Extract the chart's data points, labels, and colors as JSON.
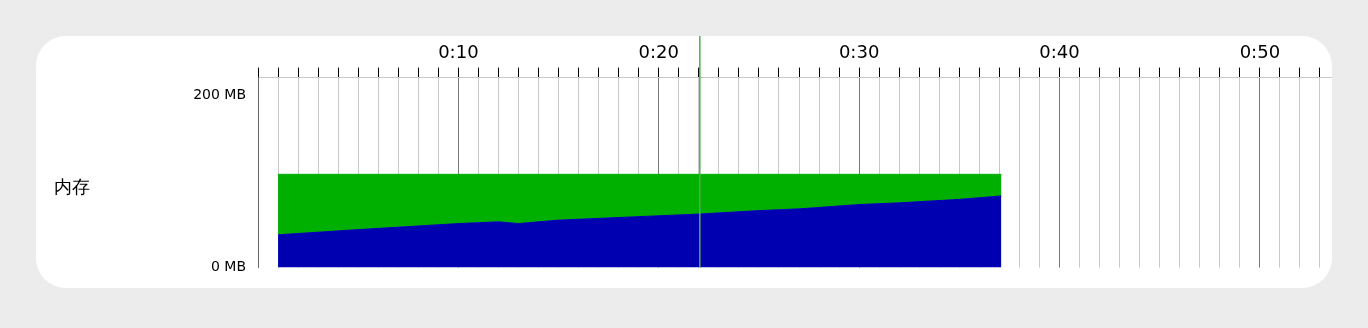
{
  "chart_data": {
    "type": "area",
    "annotations": [
      "内存"
    ],
    "stacked": true,
    "legend": false,
    "grid": "x",
    "marker": "none",
    "x": [
      1,
      5,
      10,
      12,
      13,
      15,
      20,
      22,
      25,
      27,
      30,
      32,
      35,
      37.1
    ],
    "series": [
      {
        "color": "#0000b0",
        "values": [
          38,
          44,
          51,
          53,
          51,
          55,
          60,
          62,
          66,
          68,
          73,
          75,
          79,
          83
        ]
      },
      {
        "color": "#00b000",
        "values": [
          70,
          64,
          57,
          55,
          57,
          53,
          48,
          46,
          42,
          40,
          35,
          33,
          29,
          25
        ]
      }
    ],
    "xlim": [
      0,
      53.6
    ],
    "xticks": [
      {
        "value": 0,
        "label": null
      },
      {
        "value": 1,
        "label": null
      },
      {
        "value": 2,
        "label": null
      },
      {
        "value": 3,
        "label": null
      },
      {
        "value": 4,
        "label": null
      },
      {
        "value": 5,
        "label": null
      },
      {
        "value": 6,
        "label": null
      },
      {
        "value": 7,
        "label": null
      },
      {
        "value": 8,
        "label": null
      },
      {
        "value": 9,
        "label": null
      },
      {
        "value": 10,
        "label": "0:10"
      },
      {
        "value": 11,
        "label": null
      },
      {
        "value": 12,
        "label": null
      },
      {
        "value": 13,
        "label": null
      },
      {
        "value": 14,
        "label": null
      },
      {
        "value": 15,
        "label": null
      },
      {
        "value": 16,
        "label": null
      },
      {
        "value": 17,
        "label": null
      },
      {
        "value": 18,
        "label": null
      },
      {
        "value": 19,
        "label": null
      },
      {
        "value": 20,
        "label": "0:20"
      },
      {
        "value": 21,
        "label": null
      },
      {
        "value": 22,
        "label": null
      },
      {
        "value": 23,
        "label": null
      },
      {
        "value": 24,
        "label": null
      },
      {
        "value": 25,
        "label": null
      },
      {
        "value": 26,
        "label": null
      },
      {
        "value": 27,
        "label": null
      },
      {
        "value": 28,
        "label": null
      },
      {
        "value": 29,
        "label": null
      },
      {
        "value": 30,
        "label": "0:30"
      },
      {
        "value": 31,
        "label": null
      },
      {
        "value": 32,
        "label": null
      },
      {
        "value": 33,
        "label": null
      },
      {
        "value": 34,
        "label": null
      },
      {
        "value": 35,
        "label": null
      },
      {
        "value": 36,
        "label": null
      },
      {
        "value": 37,
        "label": null
      },
      {
        "value": 38,
        "label": null
      },
      {
        "value": 39,
        "label": null
      },
      {
        "value": 40,
        "label": "0:40"
      },
      {
        "value": 41,
        "label": null
      },
      {
        "value": 42,
        "label": null
      },
      {
        "value": 43,
        "label": null
      },
      {
        "value": 44,
        "label": null
      },
      {
        "value": 45,
        "label": null
      },
      {
        "value": 46,
        "label": null
      },
      {
        "value": 47,
        "label": null
      },
      {
        "value": 48,
        "label": null
      },
      {
        "value": 49,
        "label": null
      },
      {
        "value": 50,
        "label": "0:50"
      },
      {
        "value": 51,
        "label": null
      },
      {
        "value": 52,
        "label": null
      },
      {
        "value": 53,
        "label": null
      }
    ],
    "ylim": [
      0,
      220
    ],
    "yticks": [
      {
        "value": 0,
        "label": "0 MB"
      },
      {
        "value": 200,
        "label": "200 MB"
      }
    ],
    "ref_lines": [
      {
        "axis": "x",
        "value": 22.05,
        "color": "#4caf50"
      }
    ]
  }
}
